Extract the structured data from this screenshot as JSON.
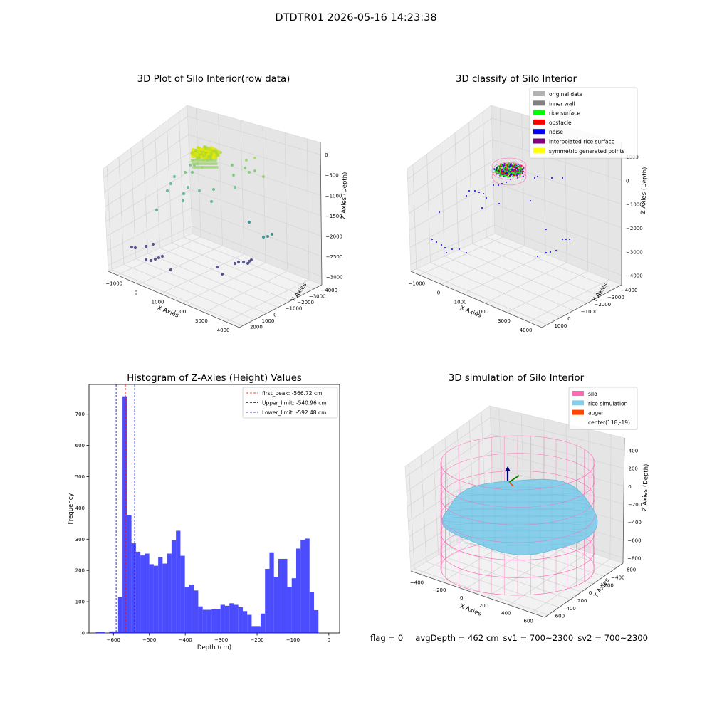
{
  "suptitle": "DTDTR01 2026-05-16 14:23:38",
  "panel_raw": {
    "title": "3D Plot of Silo Interior(row data)",
    "xlabel": "X Axies",
    "ylabel": "Y Axies",
    "zlabel": "Z Axies (Depth)",
    "x_ticks": [
      "−1000",
      "0",
      "1000",
      "2000",
      "3000",
      "4000"
    ],
    "y_ticks": [
      "−4000",
      "−3000",
      "−2000",
      "−1000",
      "0",
      "1000",
      "2000"
    ],
    "z_ticks": [
      "−3000",
      "−2500",
      "−2000",
      "−1500",
      "−1000",
      "−500",
      "0"
    ]
  },
  "panel_classify": {
    "title": "3D classify of Silo Interior",
    "xlabel": "X Axies",
    "ylabel": "Y Axies",
    "zlabel": "Z Axies (Depth)",
    "x_ticks": [
      "−1000",
      "0",
      "1000",
      "2000",
      "3000",
      "4000"
    ],
    "y_ticks": [
      "−4000",
      "−3000",
      "−2000",
      "−1000",
      "0",
      "1000"
    ],
    "z_ticks": [
      "−4000",
      "−3000",
      "−2000",
      "−1000",
      "0",
      "1000"
    ],
    "legend": [
      {
        "label": "original data",
        "color": "#b3b3b3"
      },
      {
        "label": "inner wall",
        "color": "#808080"
      },
      {
        "label": "rice surface",
        "color": "#00ff00"
      },
      {
        "label": "obstacle",
        "color": "#ff0000"
      },
      {
        "label": "noise",
        "color": "#0000ff"
      },
      {
        "label": "interpolated rice surface",
        "color": "#800080"
      },
      {
        "label": "symmetric generated points",
        "color": "#ffff00"
      }
    ]
  },
  "panel_sim": {
    "title": "3D simulation of Silo Interior",
    "xlabel": "X Axies",
    "ylabel": "Y Axies",
    "zlabel": "Z Axies (Depth)",
    "x_ticks": [
      "−400",
      "−200",
      "0",
      "200",
      "400",
      "600"
    ],
    "y_ticks": [
      "−600",
      "−400",
      "−200",
      "0",
      "200",
      "400",
      "600"
    ],
    "z_ticks": [
      "−800",
      "−600",
      "−400",
      "−200",
      "0",
      "200",
      "400"
    ],
    "legend": [
      {
        "label": "silo",
        "color": "#ff69b4"
      },
      {
        "label": "rice simulation",
        "color": "#87ceeb"
      },
      {
        "label": "auger",
        "color": "#ff4500"
      },
      {
        "label": "center(118,-19)",
        "color": ""
      }
    ],
    "center": [
      118,
      -19
    ]
  },
  "chart_data": {
    "type": "bar",
    "title": "Histogram of Z-Axies (Height) Values",
    "xlabel": "Depth (cm)",
    "ylabel": "Frequency",
    "xlim": [
      -668,
      30
    ],
    "ylim": [
      0,
      795
    ],
    "x_ticks": [
      {
        "value": -600,
        "label": "−600"
      },
      {
        "value": -500,
        "label": "−500"
      },
      {
        "value": -400,
        "label": "−400"
      },
      {
        "value": -300,
        "label": "−300"
      },
      {
        "value": -200,
        "label": "−200"
      },
      {
        "value": -100,
        "label": "−100"
      },
      {
        "value": 0,
        "label": "0"
      }
    ],
    "y_ticks": [
      0,
      100,
      200,
      300,
      400,
      500,
      600,
      700
    ],
    "bar_color": "#0000ff",
    "bin_start": -649,
    "bin_width": 12.4,
    "values": [
      2,
      2,
      0,
      5,
      5,
      115,
      757,
      376,
      287,
      260,
      248,
      254,
      220,
      215,
      242,
      222,
      254,
      297,
      327,
      247,
      148,
      155,
      136,
      85,
      74,
      74,
      77,
      77,
      90,
      87,
      95,
      90,
      82,
      70,
      58,
      22,
      22,
      62,
      205,
      258,
      180,
      237,
      237,
      148,
      175,
      270,
      298,
      302,
      130,
      73
    ],
    "lines": [
      {
        "x": -566.72,
        "label": "first_peak: -566.72 cm",
        "color": "#ff0000"
      },
      {
        "x": -540.96,
        "label": "Upper_limit: -540.96 cm",
        "color": "#0000cc"
      },
      {
        "x": -592.48,
        "label": "Lower_limit: -592.48 cm",
        "color": "#0000cc"
      }
    ]
  },
  "footer": {
    "flag": "flag = 0",
    "avg": "avgDepth = 462 cm",
    "sv1": "sv1 = 700~2300",
    "sv2": "sv2 = 700~2300"
  }
}
